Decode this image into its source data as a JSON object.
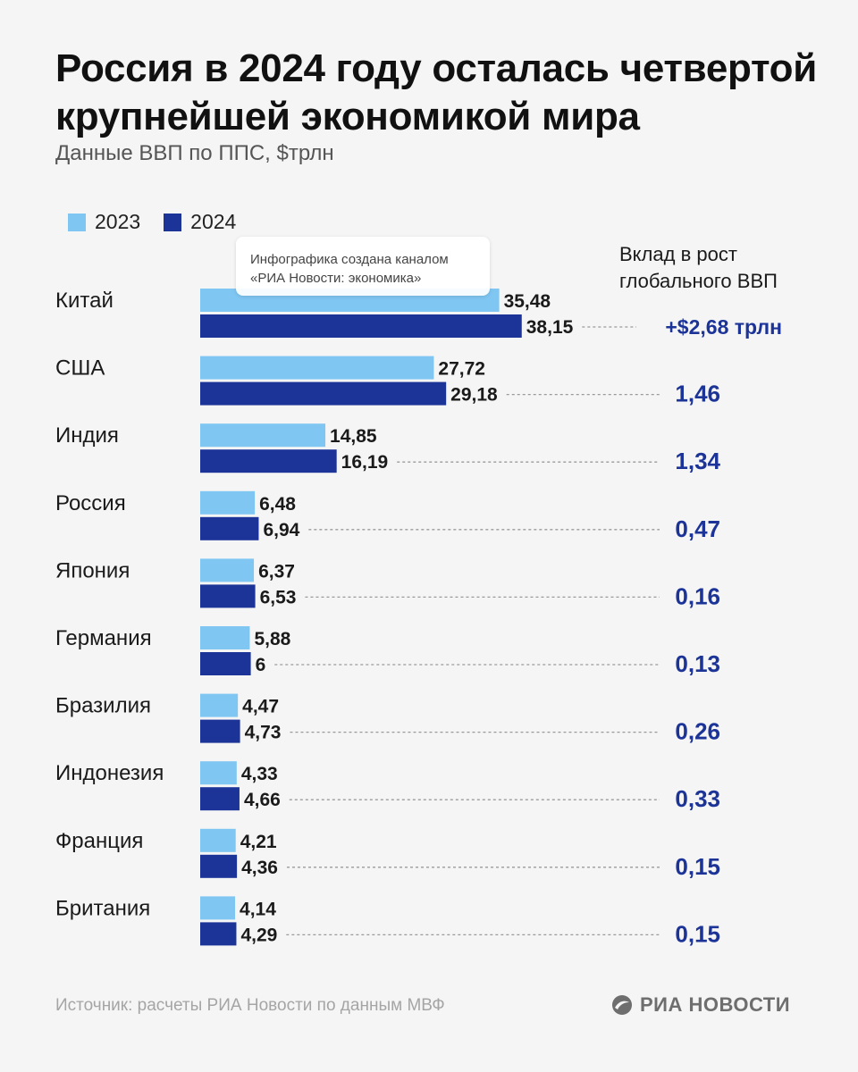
{
  "header": {
    "title": "Россия в 2024 году осталась четвертой крупнейшей экономикой мира",
    "subtitle": "Данные ВВП по ППС, $трлн"
  },
  "legend": {
    "label_2023": "2023",
    "label_2024": "2024"
  },
  "contribution_header": {
    "line1": "Вклад в рост",
    "line2": "глобального ВВП"
  },
  "watermark": {
    "line1": "Инфографика создана каналом",
    "line2": "«РИА Новости: экономика»"
  },
  "footer": {
    "source": "Источник: расчеты РИА Новости по данным МВФ",
    "logo": "РИА НОВОСТИ"
  },
  "colors": {
    "series_2023": "#7fc6f2",
    "series_2024": "#1c3397",
    "contribution": "#1c3397",
    "leader": "#9a9a9a"
  },
  "chart_data": {
    "type": "bar",
    "orientation": "horizontal",
    "categories": [
      "Китай",
      "США",
      "Индия",
      "Россия",
      "Япония",
      "Германия",
      "Бразилия",
      "Индонезия",
      "Франция",
      "Британия"
    ],
    "series": [
      {
        "name": "2023",
        "values": [
          35.48,
          27.72,
          14.85,
          6.48,
          6.37,
          5.88,
          4.47,
          4.33,
          4.21,
          4.14
        ],
        "labels": [
          "35,48",
          "27,72",
          "14,85",
          "6,48",
          "6,37",
          "5,88",
          "4,47",
          "4,33",
          "4,21",
          "4,14"
        ]
      },
      {
        "name": "2024",
        "values": [
          38.15,
          29.18,
          16.19,
          6.94,
          6.53,
          6,
          4.73,
          4.66,
          4.36,
          4.29
        ],
        "labels": [
          "38,15",
          "29,18",
          "16,19",
          "6,94",
          "6,53",
          "6",
          "4,73",
          "4,66",
          "4,36",
          "4,29"
        ]
      }
    ],
    "contribution": {
      "values": [
        2.68,
        1.46,
        1.34,
        0.47,
        0.16,
        0.13,
        0.26,
        0.33,
        0.15,
        0.15
      ],
      "labels": [
        "+$2,68 трлн",
        "1,46",
        "1,34",
        "0,47",
        "0,16",
        "0,13",
        "0,26",
        "0,33",
        "0,15",
        "0,15"
      ]
    }
  }
}
